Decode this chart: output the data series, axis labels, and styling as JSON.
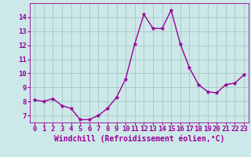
{
  "x": [
    0,
    1,
    2,
    3,
    4,
    5,
    6,
    7,
    8,
    9,
    10,
    11,
    12,
    13,
    14,
    15,
    16,
    17,
    18,
    19,
    20,
    21,
    22,
    23
  ],
  "y": [
    8.1,
    8.0,
    8.2,
    7.7,
    7.5,
    6.7,
    6.7,
    7.0,
    7.5,
    8.3,
    9.6,
    12.1,
    14.2,
    13.2,
    13.2,
    14.5,
    12.1,
    10.4,
    9.2,
    8.7,
    8.6,
    9.2,
    9.3,
    9.9
  ],
  "line_color": "#990099",
  "marker": "*",
  "marker_color": "#990099",
  "bg_color": "#cce8e8",
  "grid_color": "#aacccc",
  "xlabel": "Windchill (Refroidissement éolien,°C)",
  "ylabel": "",
  "ylim": [
    6.5,
    15.0
  ],
  "xlim": [
    -0.5,
    23.5
  ],
  "yticks": [
    7,
    8,
    9,
    10,
    11,
    12,
    13,
    14
  ],
  "xticks": [
    0,
    1,
    2,
    3,
    4,
    5,
    6,
    7,
    8,
    9,
    10,
    11,
    12,
    13,
    14,
    15,
    16,
    17,
    18,
    19,
    20,
    21,
    22,
    23
  ],
  "tick_color": "#990099",
  "tick_label_color": "#990099",
  "xlabel_color": "#990099",
  "xlabel_fontsize": 7.0,
  "tick_fontsize": 6.5,
  "line_width": 1.0,
  "marker_size": 3.5
}
